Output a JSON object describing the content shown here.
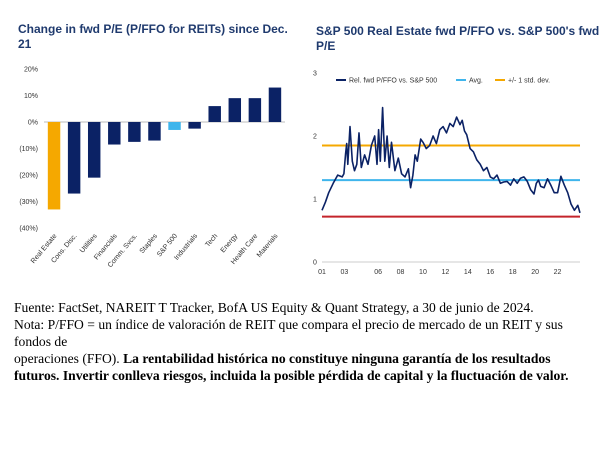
{
  "chart_data": [
    {
      "type": "bar",
      "title": "Change in fwd P/E (P/FFO for REITs) since Dec. 21",
      "categories": [
        "Real Estate",
        "Cons. Disc.",
        "Utilities",
        "Financials",
        "Comm. Svcs.",
        "Staples",
        "S&P 500",
        "Industrials",
        "Tech",
        "Energy",
        "Health Care",
        "Materials"
      ],
      "values": [
        -33,
        -27,
        -21,
        -8.5,
        -7.5,
        -7,
        -3,
        -2.5,
        6,
        9,
        9,
        13
      ],
      "yticks": [
        20,
        10,
        0,
        -10,
        -20,
        -30,
        -40
      ],
      "ytick_labels": [
        "20%",
        "10%",
        "0%",
        "(10%)",
        "(20%)",
        "(30%)",
        "(40%)"
      ],
      "ylim": [
        -40,
        20
      ],
      "colors": {
        "highlight": "#f5a800",
        "benchmark": "#3fb5ec",
        "default": "#0b2265"
      },
      "highlight": "Real Estate",
      "benchmark": "S&P 500"
    },
    {
      "type": "line",
      "title": "S&P 500 Real Estate fwd P/FFO vs. S&P 500's fwd P/E",
      "xlim": [
        2001,
        2024
      ],
      "ylim": [
        0,
        3
      ],
      "xticks": [
        2001,
        2003,
        2006,
        2008,
        2010,
        2012,
        2014,
        2016,
        2018,
        2020,
        2022
      ],
      "xtick_labels": [
        "01",
        "03",
        "06",
        "08",
        "10",
        "12",
        "14",
        "16",
        "18",
        "20",
        "22"
      ],
      "yticks": [
        0,
        1,
        2,
        3
      ],
      "ytick_labels": [
        "0",
        "1",
        "2",
        "3"
      ],
      "series": [
        {
          "name": "Rel. fwd P/FFO vs. S&P 500",
          "color": "#0b2265",
          "x": [
            2001.0,
            2001.3,
            2001.6,
            2002.0,
            2002.4,
            2002.8,
            2002.95,
            2003.1,
            2003.2,
            2003.3,
            2003.5,
            2003.7,
            2003.9,
            2004.1,
            2004.3,
            2004.5,
            2004.8,
            2005.1,
            2005.4,
            2005.7,
            2005.9,
            2006.05,
            2006.2,
            2006.4,
            2006.6,
            2006.8,
            2007.0,
            2007.2,
            2007.5,
            2007.8,
            2008.1,
            2008.4,
            2008.7,
            2008.9,
            2009.1,
            2009.3,
            2009.5,
            2009.8,
            2010.0,
            2010.3,
            2010.6,
            2010.9,
            2011.2,
            2011.5,
            2011.8,
            2012.1,
            2012.4,
            2012.7,
            2013.0,
            2013.3,
            2013.5,
            2013.7,
            2013.9,
            2014.2,
            2014.5,
            2014.8,
            2015.1,
            2015.4,
            2015.7,
            2016.0,
            2016.3,
            2016.6,
            2016.9,
            2017.2,
            2017.5,
            2017.8,
            2018.1,
            2018.4,
            2018.7,
            2019.0,
            2019.3,
            2019.6,
            2019.9,
            2020.1,
            2020.3,
            2020.5,
            2020.8,
            2021.1,
            2021.4,
            2021.7,
            2022.0,
            2022.3,
            2022.6,
            2022.9,
            2023.2,
            2023.5,
            2023.8,
            2024.0
          ],
          "y": [
            0.82,
            0.95,
            1.1,
            1.25,
            1.38,
            1.35,
            1.4,
            1.72,
            1.88,
            1.55,
            2.15,
            1.6,
            1.45,
            1.55,
            2.05,
            1.5,
            1.7,
            1.55,
            1.85,
            2.0,
            1.55,
            2.1,
            1.6,
            2.45,
            1.6,
            2.0,
            1.5,
            1.9,
            1.45,
            1.65,
            1.4,
            1.35,
            1.48,
            1.18,
            1.38,
            1.7,
            1.6,
            1.95,
            1.9,
            1.8,
            1.85,
            2.0,
            1.88,
            2.1,
            2.15,
            2.05,
            2.2,
            2.15,
            2.3,
            2.18,
            2.25,
            2.08,
            2.02,
            1.8,
            1.75,
            1.62,
            1.55,
            1.45,
            1.5,
            1.35,
            1.32,
            1.38,
            1.25,
            1.27,
            1.28,
            1.22,
            1.32,
            1.25,
            1.33,
            1.35,
            1.28,
            1.15,
            1.08,
            1.25,
            1.3,
            1.2,
            1.18,
            1.32,
            1.22,
            1.1,
            1.1,
            1.36,
            1.22,
            1.1,
            0.92,
            0.82,
            0.9,
            0.78
          ]
        },
        {
          "name": "Avg.",
          "color": "#3fb5ec",
          "value": 1.3
        },
        {
          "name": "+/- 1 std. dev.",
          "color": "#f5a800",
          "values": [
            1.85,
            0.72
          ],
          "lower_color": "#c4242b"
        }
      ]
    }
  ],
  "notes": {
    "line1": "Fuente: FactSet, NAREIT T Tracker, BofA US Equity & Quant Strategy, a 30 de junio de 2024.",
    "line2": "Nota: P/FFO = un índice de valoración de REIT que compara el precio de mercado de un REIT y sus fondos de",
    "line3_plain": "operaciones (FFO). ",
    "line3_bold": "La rentabilidad histórica no constituye ninguna garantía de los resultados futuros. Invertir conlleva riesgos, incluida la posible pérdida de capital y la fluctuación de valor."
  }
}
